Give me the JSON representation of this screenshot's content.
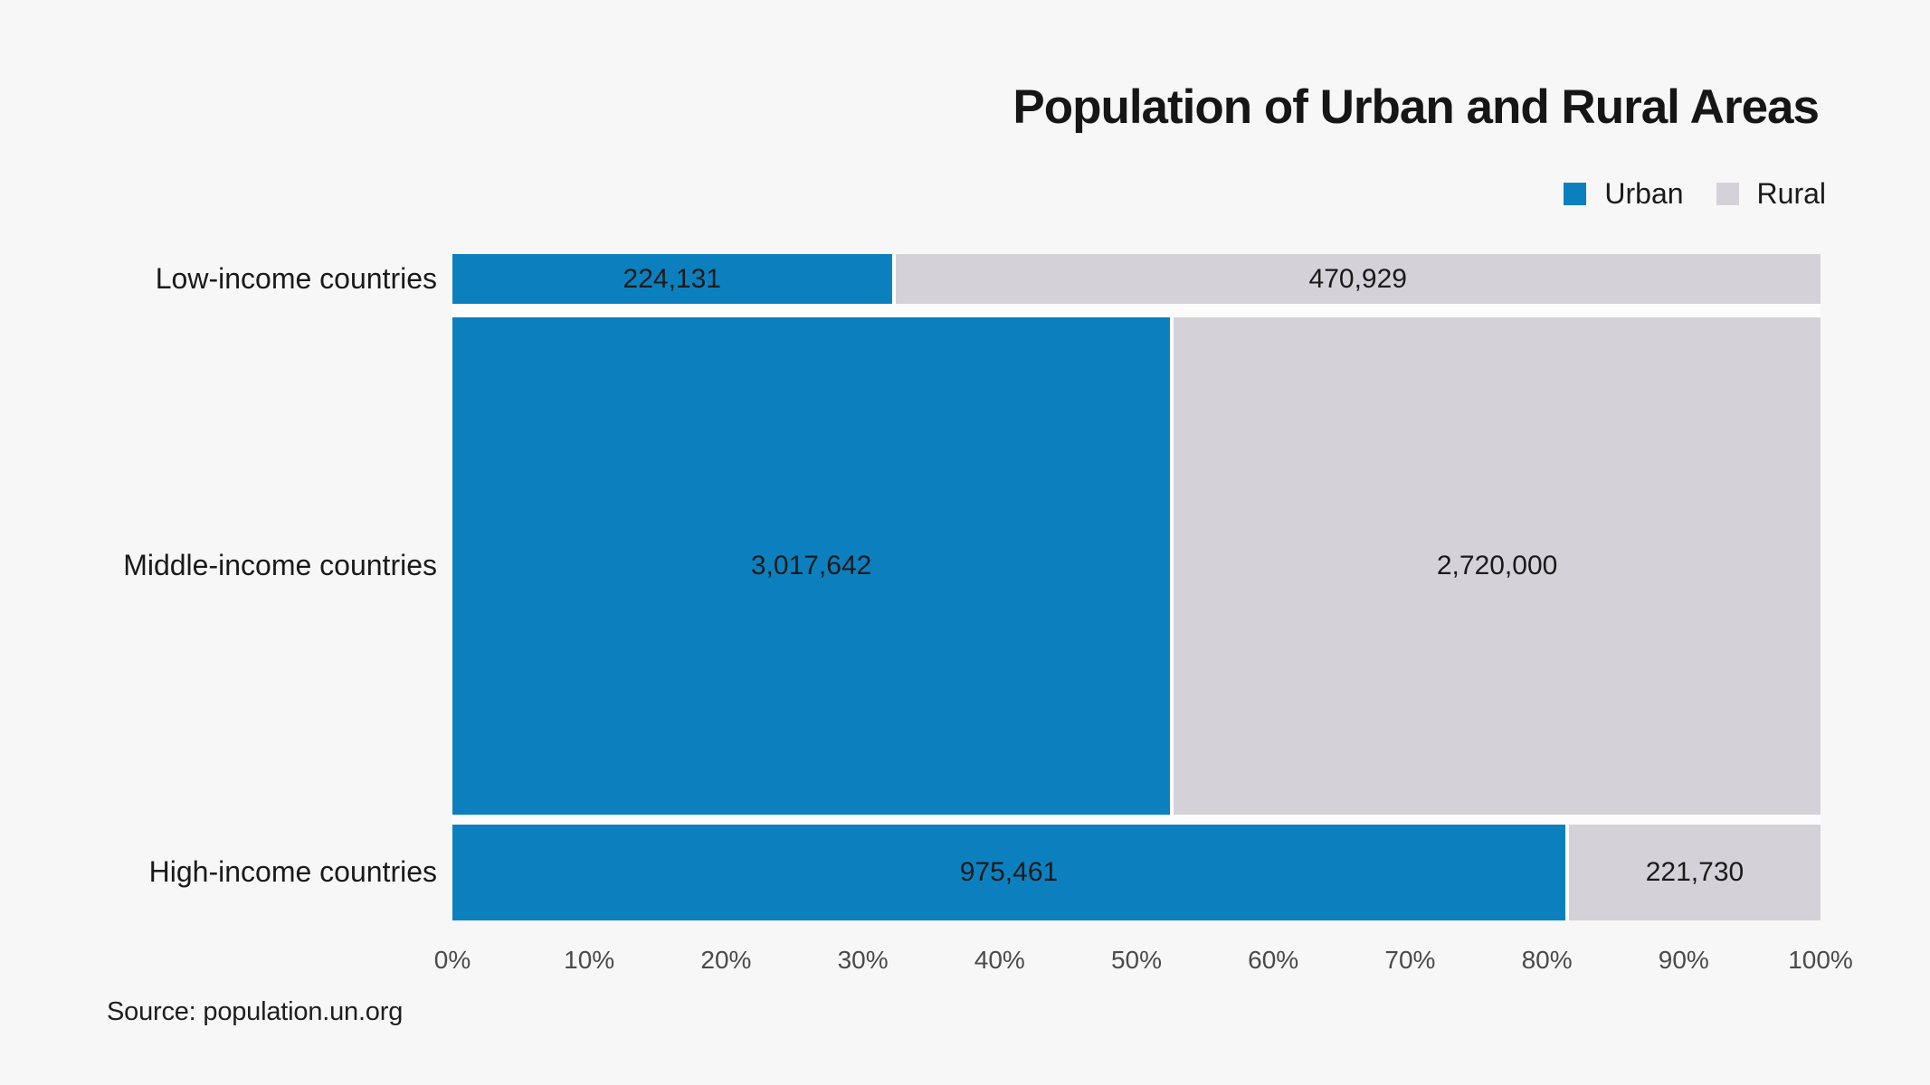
{
  "title": "Population of Urban and Rural Areas",
  "legend": {
    "urban_label": "Urban",
    "rural_label": "Rural"
  },
  "source": "Source: population.un.org",
  "colors": {
    "urban": "#0c80be",
    "rural": "#d4d2d8",
    "background": "#f7f7f7"
  },
  "chart_data": {
    "type": "bar",
    "subtype": "stacked-horizontal-mekko",
    "title": "Population of Urban and Rural Areas",
    "categories": [
      "Low-income countries",
      "Middle-income countries",
      "High-income countries"
    ],
    "series": [
      {
        "name": "Urban",
        "color": "#0c80be",
        "values": [
          224131,
          3017642,
          975461
        ],
        "labels": [
          "224,131",
          "3,017,642",
          "975,461"
        ]
      },
      {
        "name": "Rural",
        "color": "#d4d2d8",
        "values": [
          470929,
          2720000,
          221730
        ],
        "labels": [
          "470,929",
          "2,720,000",
          "221,730"
        ]
      }
    ],
    "x_axis": {
      "min": 0,
      "max": 100,
      "unit": "percent",
      "ticks": [
        "0%",
        "10%",
        "20%",
        "30%",
        "40%",
        "50%",
        "60%",
        "70%",
        "80%",
        "90%",
        "100%"
      ]
    },
    "legend_position": "top-right",
    "grid": false
  }
}
